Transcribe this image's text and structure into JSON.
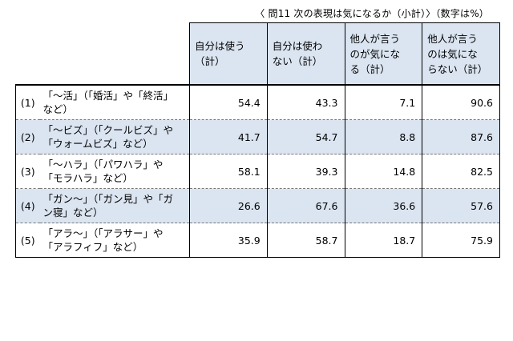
{
  "caption": "〈 問11 次の表現は気になるか（小計）〉（数字は%）",
  "headers": [
    {
      "line1": "自分は使う",
      "line2": "（計）",
      "line3": ""
    },
    {
      "line1": "自分は使わ",
      "line2": "ない（計）",
      "line3": ""
    },
    {
      "line1": "他人が言う",
      "line2": "のが気にな",
      "line3": "る（計）"
    },
    {
      "line1": "他人が言う",
      "line2": "のは気にな",
      "line3": "らない（計）"
    }
  ],
  "rows": [
    {
      "idx": "(1)",
      "label1": "「～活」（「婚活」や「終活」",
      "label2": "など）",
      "values": [
        "54.4",
        "43.3",
        "7.1",
        "90.6"
      ]
    },
    {
      "idx": "(2)",
      "label1": "「～ビズ」（「クールビズ」や",
      "label2": "「ウォームビズ」など）",
      "values": [
        "41.7",
        "54.7",
        "8.8",
        "87.6"
      ]
    },
    {
      "idx": "(3)",
      "label1": "「～ハラ」（「パワハラ」や",
      "label2": "「モラハラ」など）",
      "values": [
        "58.1",
        "39.3",
        "14.8",
        "82.5"
      ]
    },
    {
      "idx": "(4)",
      "label1": "「ガン～」（「ガン見」や「ガ",
      "label2": "ン寝」など）",
      "values": [
        "26.6",
        "67.6",
        "36.6",
        "57.6"
      ]
    },
    {
      "idx": "(5)",
      "label1": "「アラ～」（「アラサー」や",
      "label2": "「アラフィフ」など）",
      "values": [
        "35.9",
        "58.7",
        "18.7",
        "75.9"
      ]
    }
  ]
}
